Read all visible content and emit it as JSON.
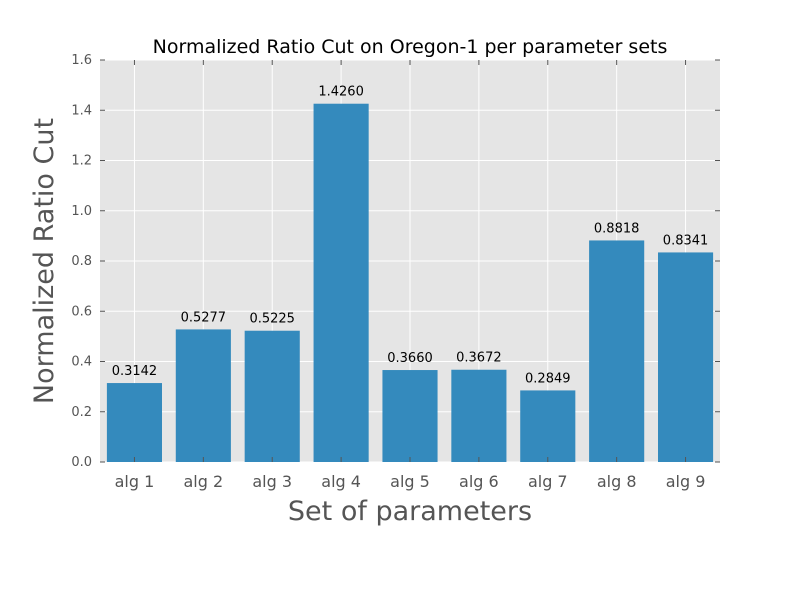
{
  "chart_data": {
    "type": "bar",
    "title": "Normalized Ratio Cut on Oregon-1 per parameter sets",
    "xlabel": "Set of parameters",
    "ylabel": "Normalized Ratio Cut",
    "categories": [
      "alg 1",
      "alg 2",
      "alg 3",
      "alg 4",
      "alg 5",
      "alg 6",
      "alg 7",
      "alg 8",
      "alg 9"
    ],
    "values": [
      0.3142,
      0.5277,
      0.5225,
      1.426,
      0.366,
      0.3672,
      0.2849,
      0.8818,
      0.8341
    ],
    "value_labels": [
      "0.3142",
      "0.5277",
      "0.5225",
      "1.4260",
      "0.3660",
      "0.3672",
      "0.2849",
      "0.8818",
      "0.8341"
    ],
    "ylim": [
      0,
      1.6
    ],
    "yticks": [
      "0.0",
      "0.2",
      "0.4",
      "0.6",
      "0.8",
      "1.0",
      "1.2",
      "1.4",
      "1.6"
    ],
    "grid": true,
    "bar_color": "#348abd",
    "plot_background": "#e5e5e5"
  }
}
